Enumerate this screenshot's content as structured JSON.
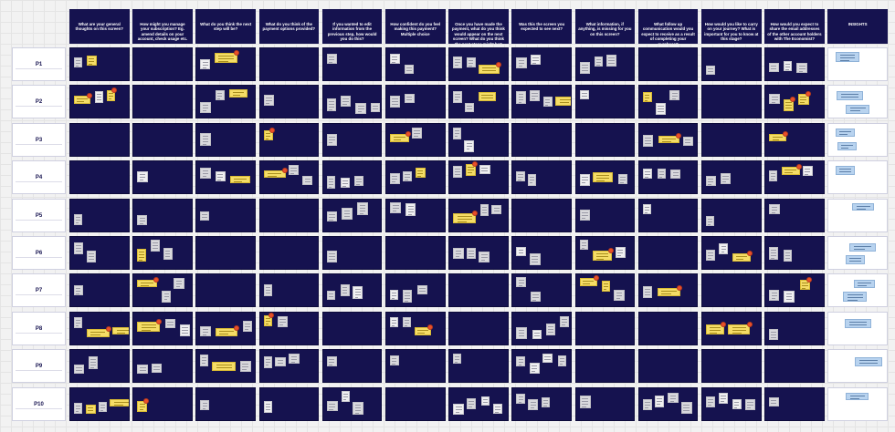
{
  "board": {
    "questions": [
      "What are your general thoughts on this screen?",
      "How might you manage your subscription? Eg. amend details on your account, check usage etc.",
      "What do you think the next step will be?",
      "What do you think of the payment options provided?",
      "If you wanted to edit information from the previous step, how would you do this?",
      "How confident do you feel making this payment? Multiple choice",
      "Once you have made the payment, what do you think would appear on the next screen? What do you think the next steps might be? Think aloud and explain your reasoning",
      "Was this the screen you expected to see next?",
      "What information, if anything, is missing for you on this screen?",
      "What follow up communication would you expect to receive as a result of completing your purchase?",
      "How would you like to carry on your journey? What is important for you to know at this stage?",
      "How would you expect to share the email addresses of the other account holders with The Economist?",
      "INSIGHTS"
    ],
    "participants": [
      "P1",
      "P2",
      "P3",
      "P4",
      "P5",
      "P6",
      "P7",
      "P8",
      "P9",
      "P10"
    ],
    "colors": {
      "cell_bg": "#15124f",
      "note_grey": "#d9d9dd",
      "note_yellow": "#f5dd67",
      "note_blue": "#b8d3ef",
      "dot_red": "#e8502a"
    }
  }
}
